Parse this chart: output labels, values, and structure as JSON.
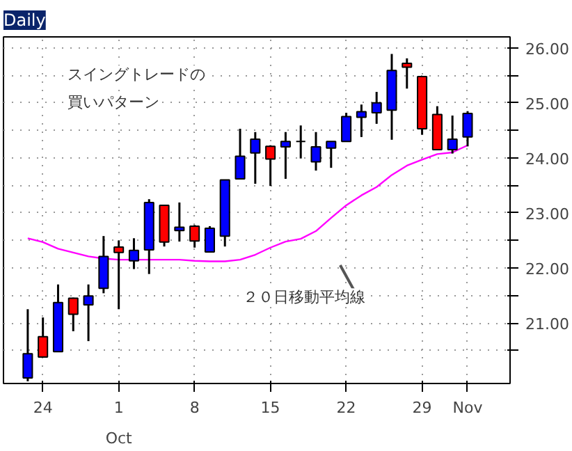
{
  "chart_data": {
    "type": "candlestick",
    "title": "Daily",
    "categories": [
      null,
      "24",
      null,
      null,
      null,
      null,
      "1",
      null,
      null,
      null,
      null,
      "8",
      null,
      null,
      null,
      null,
      "15",
      null,
      null,
      null,
      null,
      "22",
      null,
      null,
      null,
      null,
      "29",
      null,
      null,
      "Nov"
    ],
    "ohlc": [
      [
        20.0,
        21.25,
        19.94,
        20.44
      ],
      [
        20.75,
        21.1,
        20.38,
        20.38
      ],
      [
        20.48,
        21.7,
        20.48,
        21.37
      ],
      [
        21.45,
        21.46,
        20.85,
        21.16
      ],
      [
        21.33,
        21.7,
        20.67,
        21.49
      ],
      [
        21.63,
        22.58,
        21.54,
        22.21
      ],
      [
        22.38,
        22.5,
        21.25,
        22.28
      ],
      [
        22.13,
        22.54,
        21.98,
        22.32
      ],
      [
        22.33,
        23.25,
        21.89,
        23.19
      ],
      [
        23.14,
        23.14,
        22.39,
        22.47
      ],
      [
        22.68,
        23.19,
        22.48,
        22.74
      ],
      [
        22.76,
        22.78,
        22.37,
        22.49
      ],
      [
        22.29,
        22.76,
        22.28,
        22.72
      ],
      [
        22.58,
        23.6,
        22.39,
        23.6
      ],
      [
        23.62,
        24.53,
        23.62,
        24.03
      ],
      [
        24.09,
        24.47,
        23.53,
        24.34
      ],
      [
        24.21,
        24.23,
        23.49,
        23.98
      ],
      [
        24.2,
        24.47,
        23.62,
        24.3
      ],
      [
        24.3,
        24.59,
        23.99,
        24.3
      ],
      [
        23.93,
        24.47,
        23.77,
        24.2
      ],
      [
        24.18,
        24.3,
        23.82,
        24.3
      ],
      [
        24.3,
        24.82,
        24.3,
        24.75
      ],
      [
        24.74,
        24.97,
        24.38,
        24.84
      ],
      [
        24.82,
        25.2,
        24.62,
        25.0
      ],
      [
        24.87,
        25.89,
        24.33,
        25.59
      ],
      [
        25.72,
        25.81,
        25.26,
        25.65
      ],
      [
        25.48,
        25.48,
        24.42,
        24.53
      ],
      [
        24.79,
        24.94,
        24.14,
        24.15
      ],
      [
        24.15,
        24.77,
        24.08,
        24.34
      ],
      [
        24.38,
        24.85,
        24.21,
        24.81
      ]
    ],
    "colors": [
      "#0000ff",
      "#ff0000",
      "#0000ff",
      "#ff0000",
      "#0000ff",
      "#0000ff",
      "#ff0000",
      "#0000ff",
      "#0000ff",
      "#ff0000",
      "#0000ff",
      "#ff0000",
      "#0000ff",
      "#0000ff",
      "#0000ff",
      "#0000ff",
      "#ff0000",
      "#0000ff",
      "#000000",
      "#0000ff",
      "#0000ff",
      "#0000ff",
      "#0000ff",
      "#0000ff",
      "#0000ff",
      "#ff0000",
      "#ff0000",
      "#ff0000",
      "#0000ff",
      "#0000ff"
    ],
    "series": [
      {
        "type": "line",
        "color": "#ff00ff",
        "values": [
          22.54,
          22.47,
          22.35,
          22.28,
          22.21,
          22.17,
          22.15,
          22.15,
          22.15,
          22.15,
          22.15,
          22.13,
          22.12,
          22.12,
          22.15,
          22.24,
          22.37,
          22.48,
          22.53,
          22.67,
          22.91,
          23.14,
          23.32,
          23.47,
          23.69,
          23.86,
          23.97,
          24.07,
          24.1,
          24.23
        ]
      }
    ],
    "ylim": [
      19.9,
      26.2
    ],
    "yticks": [
      {
        "value": 20.5,
        "label": null
      },
      {
        "value": 21,
        "label": "21.00"
      },
      {
        "value": 21.5,
        "label": null
      },
      {
        "value": 22,
        "label": "22.00"
      },
      {
        "value": 22.5,
        "label": null
      },
      {
        "value": 23,
        "label": "23.00"
      },
      {
        "value": 23.5,
        "label": null
      },
      {
        "value": 24,
        "label": "24.00"
      },
      {
        "value": 24.5,
        "label": null
      },
      {
        "value": 25,
        "label": "25.00"
      },
      {
        "value": 25.5,
        "label": null
      },
      {
        "value": 26,
        "label": "26.00"
      }
    ],
    "grid": true,
    "annotations": [
      "スイングトレードの",
      "買いパターン",
      "２０日移動平均線",
      "Oct"
    ]
  }
}
